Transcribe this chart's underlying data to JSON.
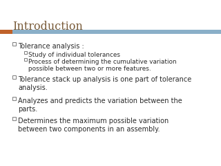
{
  "title": "Introduction",
  "title_color": "#7a5c3a",
  "title_fontsize": 11.5,
  "title_font": "serif",
  "accent_bar_color": "#c0622a",
  "header_bar_color": "#8aafc8",
  "background_color": "#ffffff",
  "bullet_color": "#2a2a2a",
  "main_bullets": [
    "Tolerance analysis :",
    "Tolerance stack up analysis is one part of tolerance\nanalysis.",
    "Analyzes and predicts the variation between the\nparts.",
    "Determines the maximum possible variation\nbetween two components in an assembly."
  ],
  "sub_bullets": [
    "Study of individual tolerances",
    "Process of determining the cumulative variation\npossible between two or more features."
  ],
  "main_fontsize": 7.0,
  "sub_fontsize": 6.4
}
